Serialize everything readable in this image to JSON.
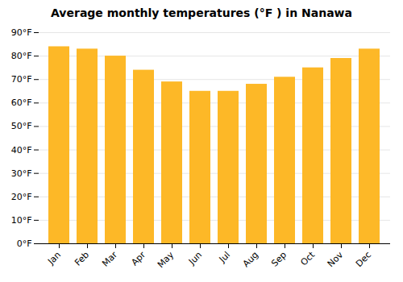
{
  "chart_data": {
    "type": "bar",
    "title": "Average monthly temperatures (°F ) in Nanawa",
    "categories": [
      "Jan",
      "Feb",
      "Mar",
      "Apr",
      "May",
      "Jun",
      "Jul",
      "Aug",
      "Sep",
      "Oct",
      "Nov",
      "Dec"
    ],
    "values": [
      84,
      83,
      80,
      74,
      69,
      65,
      65,
      68,
      71,
      75,
      79,
      83
    ],
    "color": "#FDB827",
    "ylim": [
      0,
      90
    ],
    "yticks": [
      {
        "value": 0,
        "label": "0°F"
      },
      {
        "value": 10,
        "label": "10°F"
      },
      {
        "value": 20,
        "label": "20°F"
      },
      {
        "value": 30,
        "label": "30°F"
      },
      {
        "value": 40,
        "label": "40°F"
      },
      {
        "value": 50,
        "label": "50°F"
      },
      {
        "value": 60,
        "label": "60°F"
      },
      {
        "value": 70,
        "label": "70°F"
      },
      {
        "value": 80,
        "label": "80°F"
      },
      {
        "value": 90,
        "label": "90°F"
      }
    ],
    "grid": true
  }
}
